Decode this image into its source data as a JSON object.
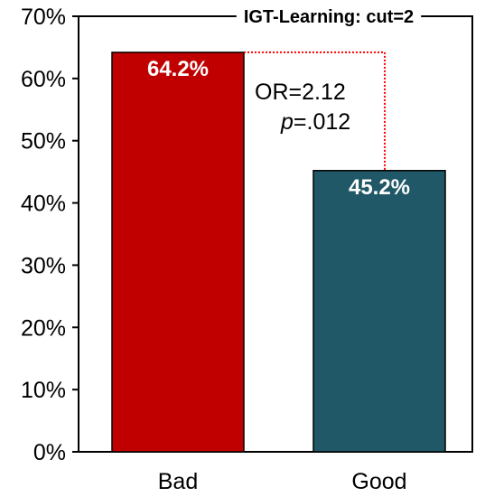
{
  "chart_data": {
    "type": "bar",
    "title": "IGT-Learning: cut=2",
    "categories": [
      "Bad",
      "Good"
    ],
    "values": [
      64.2,
      45.2
    ],
    "value_labels": [
      "64.2%",
      "45.2%"
    ],
    "bar_colors": [
      "#c00000",
      "#215868"
    ],
    "ylim": [
      0,
      70
    ],
    "y_ticks": [
      "0%",
      "10%",
      "20%",
      "30%",
      "40%",
      "50%",
      "60%",
      "70%"
    ],
    "xlabel": "",
    "ylabel": "",
    "grid": false,
    "annotation": {
      "or_text": "OR=2.12",
      "p_italic": "p",
      "p_rest": "=.012",
      "bracket_color": "#ff0000"
    }
  }
}
